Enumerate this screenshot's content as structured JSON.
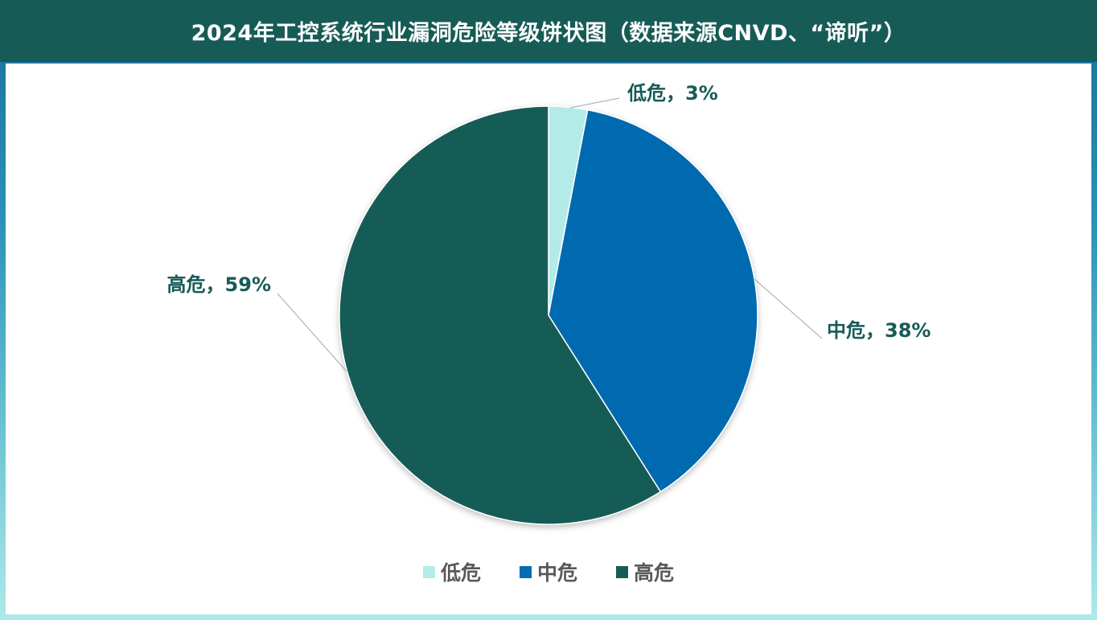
{
  "header": {
    "title": "2024年工控系统行业漏洞危险等级饼状图（数据来源CNVD、“谛听”）"
  },
  "colors": {
    "header_bg": "#175b57",
    "label_text": "#175b57",
    "legend_text": "#595959"
  },
  "chart_data": {
    "type": "pie",
    "title": "2024年工控系统行业漏洞危险等级饼状图（数据来源CNVD、“谛听”）",
    "slices": [
      {
        "name": "低危",
        "value": 3,
        "label": "低危，3%",
        "color": "#b3ebe8"
      },
      {
        "name": "中危",
        "value": 38,
        "label": "中危，38%",
        "color": "#066bb0"
      },
      {
        "name": "高危",
        "value": 59,
        "label": "高危，59%",
        "color": "#175b57"
      }
    ],
    "legend": {
      "placement": "bottom",
      "entries": [
        "低危",
        "中危",
        "高危"
      ]
    }
  }
}
